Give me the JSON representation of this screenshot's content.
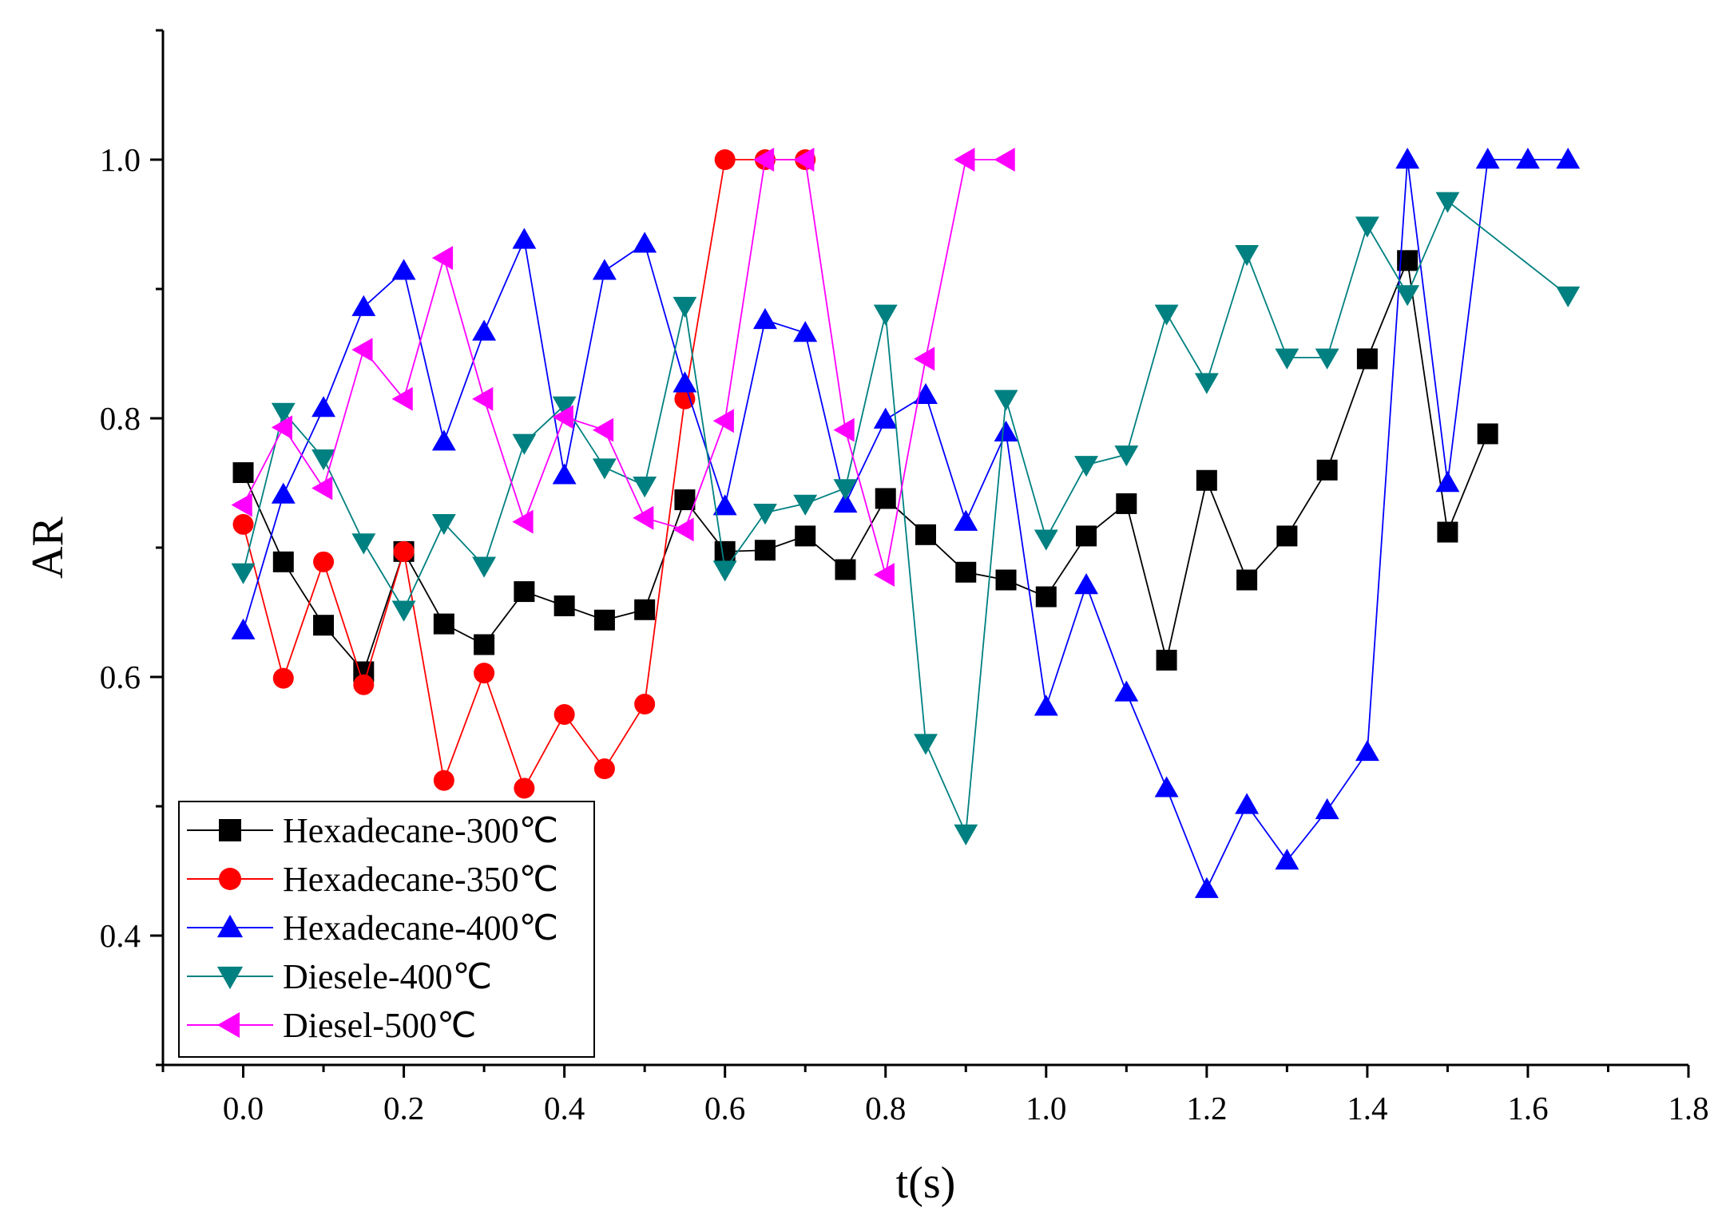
{
  "chart_data": {
    "type": "line",
    "title": "",
    "xlabel": "t(s)",
    "ylabel": "AR",
    "xlim": [
      -0.1,
      1.8
    ],
    "ylim": [
      0.3,
      1.1
    ],
    "x_ticks": [
      0.0,
      0.2,
      0.4,
      0.6,
      0.8,
      1.0,
      1.2,
      1.4,
      1.6,
      1.8
    ],
    "x_tick_labels": [
      "0.0",
      "0.2",
      "0.4",
      "0.6",
      "0.8",
      "1.0",
      "1.2",
      "1.4",
      "1.6",
      "1.8"
    ],
    "y_ticks": [
      0.4,
      0.6,
      0.8,
      1.0
    ],
    "y_tick_labels": [
      "0.4",
      "0.6",
      "0.8",
      "1.0"
    ],
    "grid": false,
    "legend_position": "bottom-left",
    "series": [
      {
        "name": "Hexadecane-300℃",
        "color": "#000000",
        "marker": "square",
        "x": [
          0.0,
          0.05,
          0.1,
          0.15,
          0.2,
          0.25,
          0.3,
          0.35,
          0.4,
          0.45,
          0.5,
          0.55,
          0.6,
          0.65,
          0.7,
          0.75,
          0.8,
          0.85,
          0.9,
          0.95,
          1.0,
          1.05,
          1.1,
          1.15,
          1.2,
          1.25,
          1.3,
          1.35,
          1.4,
          1.45,
          1.5,
          1.55
        ],
        "y": [
          0.758,
          0.689,
          0.64,
          0.604,
          0.697,
          0.641,
          0.625,
          0.666,
          0.655,
          0.644,
          0.652,
          0.737,
          0.697,
          0.698,
          0.709,
          0.683,
          0.738,
          0.71,
          0.681,
          0.675,
          0.662,
          0.709,
          0.734,
          0.613,
          0.752,
          0.675,
          0.709,
          0.76,
          0.846,
          0.922,
          0.712,
          0.788
        ]
      },
      {
        "name": "Hexadecane-350℃",
        "color": "#ff0000",
        "marker": "circle",
        "x": [
          0.0,
          0.05,
          0.1,
          0.15,
          0.2,
          0.25,
          0.3,
          0.35,
          0.4,
          0.45,
          0.5,
          0.55,
          0.6,
          0.65,
          0.7
        ],
        "y": [
          0.718,
          0.599,
          0.689,
          0.594,
          0.697,
          0.52,
          0.603,
          0.514,
          0.571,
          0.529,
          0.579,
          0.815,
          1.0,
          1.0,
          1.0
        ]
      },
      {
        "name": "Hexadecane-400℃",
        "color": "#0000ff",
        "marker": "triangle-up",
        "x": [
          0.0,
          0.05,
          0.1,
          0.15,
          0.2,
          0.25,
          0.3,
          0.35,
          0.4,
          0.45,
          0.5,
          0.55,
          0.6,
          0.65,
          0.7,
          0.75,
          0.8,
          0.85,
          0.9,
          0.95,
          1.0,
          1.05,
          1.1,
          1.15,
          1.2,
          1.25,
          1.3,
          1.35,
          1.4,
          1.45,
          1.5,
          1.55,
          1.6,
          1.65
        ],
        "y": [
          0.636,
          0.741,
          0.808,
          0.886,
          0.914,
          0.782,
          0.867,
          0.938,
          0.756,
          0.914,
          0.935,
          0.827,
          0.732,
          0.876,
          0.866,
          0.734,
          0.799,
          0.818,
          0.72,
          0.789,
          0.577,
          0.671,
          0.588,
          0.514,
          0.436,
          0.501,
          0.458,
          0.497,
          0.542,
          1.0,
          0.75,
          1.0,
          1.0,
          1.0
        ]
      },
      {
        "name": "Diesele-400℃",
        "color": "#008080",
        "marker": "triangle-down",
        "x": [
          0.0,
          0.05,
          0.1,
          0.15,
          0.2,
          0.25,
          0.3,
          0.35,
          0.4,
          0.45,
          0.5,
          0.55,
          0.6,
          0.65,
          0.7,
          0.75,
          0.8,
          0.85,
          0.9,
          0.95,
          1.0,
          1.05,
          1.1,
          1.15,
          1.2,
          1.25,
          1.3,
          1.35,
          1.4,
          1.45,
          1.5,
          1.65
        ],
        "y": [
          0.681,
          0.805,
          0.769,
          0.704,
          0.652,
          0.719,
          0.686,
          0.781,
          0.81,
          0.762,
          0.748,
          0.887,
          0.683,
          0.727,
          0.734,
          0.746,
          0.881,
          0.549,
          0.479,
          0.815,
          0.707,
          0.764,
          0.772,
          0.881,
          0.828,
          0.927,
          0.847,
          0.847,
          0.949,
          0.896,
          0.968,
          0.895
        ]
      },
      {
        "name": "Diesel-500℃",
        "color": "#ff00ff",
        "marker": "triangle-left",
        "x": [
          0.0,
          0.05,
          0.1,
          0.15,
          0.2,
          0.25,
          0.3,
          0.35,
          0.4,
          0.45,
          0.5,
          0.55,
          0.6,
          0.65,
          0.7,
          0.75,
          0.8,
          0.85,
          0.9,
          0.95
        ],
        "y": [
          0.733,
          0.793,
          0.746,
          0.853,
          0.815,
          0.924,
          0.815,
          0.72,
          0.801,
          0.791,
          0.723,
          0.714,
          0.798,
          1.0,
          1.0,
          0.791,
          0.679,
          0.846,
          1.0,
          1.0
        ]
      }
    ]
  }
}
